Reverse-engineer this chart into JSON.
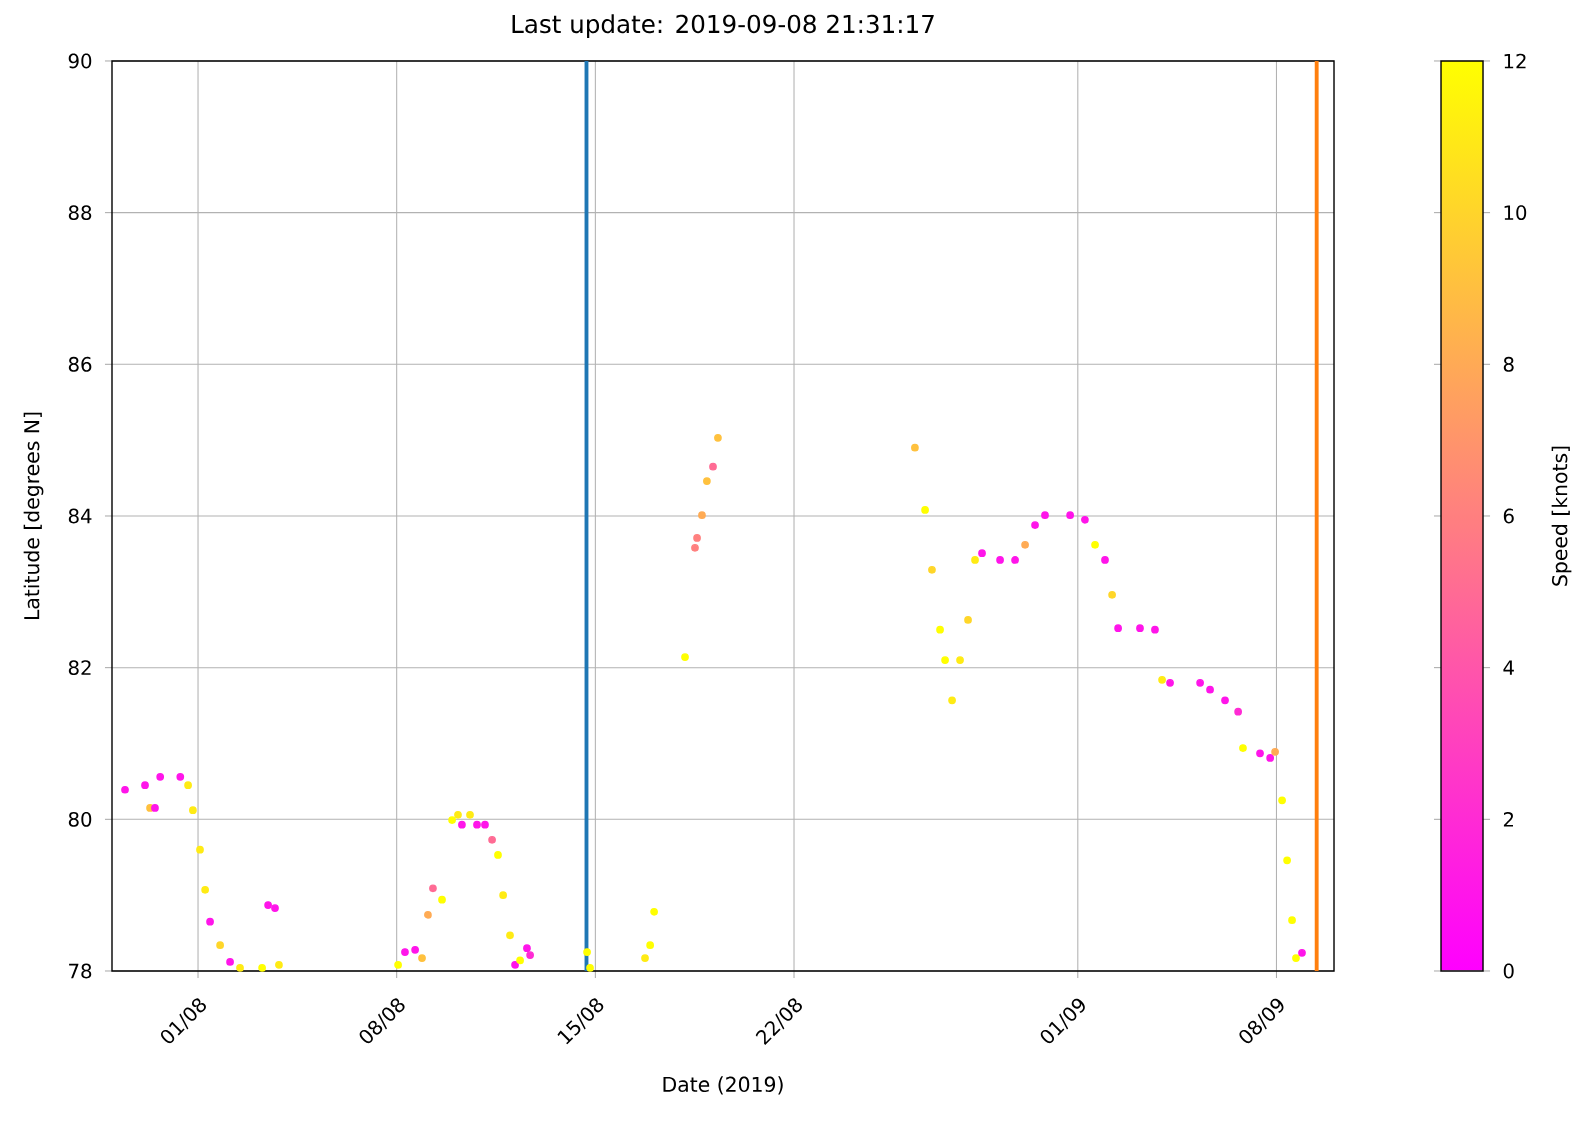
{
  "chart_data": {
    "type": "scatter",
    "title": "Last update: 2019-09-08 21:31:17",
    "xlabel": "Date (2019)",
    "ylabel": "Latitude [degrees N]",
    "clabel": "Speed [knots]",
    "x": [
      "2019-07-29T10:15",
      "2019-07-30T03:10",
      "2019-07-30T07:25",
      "2019-07-30T11:35",
      "2019-07-30T16:00",
      "2019-07-31T09:00",
      "2019-07-31T15:35",
      "2019-07-31T19:40",
      "2019-08-01T01:40",
      "2019-08-01T06:00",
      "2019-08-01T10:10",
      "2019-08-01T18:40",
      "2019-08-02T03:05",
      "2019-08-02T11:30",
      "2019-08-03T06:10",
      "2019-08-03T11:15",
      "2019-08-03T17:05",
      "2019-08-03T20:25",
      "2019-08-08T01:10",
      "2019-08-08T07:00",
      "2019-08-08T15:35",
      "2019-08-08T21:25",
      "2019-08-09T02:25",
      "2019-08-09T06:40",
      "2019-08-09T14:20",
      "2019-08-09T22:50",
      "2019-08-10T03:50",
      "2019-08-10T07:10",
      "2019-08-10T14:00",
      "2019-08-10T19:55",
      "2019-08-11T02:40",
      "2019-08-11T08:40",
      "2019-08-11T13:40",
      "2019-08-11T18:00",
      "2019-08-11T23:50",
      "2019-08-12T04:05",
      "2019-08-12T08:20",
      "2019-08-12T14:10",
      "2019-08-12T16:50",
      "2019-08-14T17:00",
      "2019-08-14T19:30",
      "2019-08-16T18:00",
      "2019-08-16T22:20",
      "2019-08-17T01:40",
      "2019-08-18T03:50",
      "2019-08-18T12:15",
      "2019-08-18T14:00",
      "2019-08-18T18:10",
      "2019-08-18T22:20",
      "2019-08-19T03:30",
      "2019-08-19T07:40",
      "2019-08-26T06:15",
      "2019-08-26T14:50",
      "2019-08-26T20:40",
      "2019-08-27T03:30",
      "2019-08-27T07:45",
      "2019-08-27T13:40",
      "2019-08-27T20:25",
      "2019-08-28T03:10",
      "2019-08-28T09:05",
      "2019-08-28T15:00",
      "2019-08-29T06:15",
      "2019-08-29T18:55",
      "2019-08-30T03:25",
      "2019-08-30T11:50",
      "2019-08-30T20:15",
      "2019-08-31T17:30",
      "2019-09-01T06:00",
      "2019-09-01T14:35",
      "2019-09-01T23:00",
      "2019-09-02T05:00",
      "2019-09-02T10:05",
      "2019-09-03T04:35",
      "2019-09-03T17:15",
      "2019-09-03T23:15",
      "2019-09-04T06:00",
      "2019-09-05T07:25",
      "2019-09-05T15:50",
      "2019-09-06T04:30",
      "2019-09-06T15:35",
      "2019-09-06T19:40",
      "2019-09-07T10:05",
      "2019-09-07T18:40",
      "2019-09-07T22:50",
      "2019-09-08T04:45",
      "2019-09-08T09:00",
      "2019-09-08T13:10",
      "2019-09-08T16:30",
      "2019-09-08T21:35"
    ],
    "values": [
      80.39,
      80.45,
      80.15,
      80.15,
      80.56,
      80.56,
      80.45,
      80.12,
      79.6,
      79.07,
      78.65,
      78.34,
      78.12,
      78.04,
      78.04,
      78.87,
      78.83,
      78.08,
      78.08,
      78.25,
      78.28,
      78.17,
      78.74,
      79.09,
      78.94,
      79.99,
      80.06,
      79.93,
      80.06,
      79.93,
      79.93,
      79.73,
      79.53,
      79.0,
      78.47,
      78.08,
      78.14,
      78.3,
      78.21,
      78.25,
      78.04,
      78.17,
      78.34,
      78.78,
      82.14,
      83.58,
      83.71,
      84.01,
      84.46,
      84.65,
      85.03,
      84.9,
      84.08,
      83.29,
      82.5,
      82.1,
      81.57,
      82.1,
      82.63,
      83.42,
      83.51,
      83.42,
      83.42,
      83.62,
      83.88,
      84.01,
      84.01,
      83.95,
      83.62,
      83.42,
      82.96,
      82.52,
      82.52,
      82.5,
      81.84,
      81.8,
      81.8,
      81.71,
      81.57,
      81.42,
      80.94,
      80.87,
      80.81,
      80.89,
      80.25,
      79.46,
      78.67,
      78.17,
      78.24
    ],
    "cvalues": [
      1,
      1,
      9,
      1,
      1,
      1,
      11,
      11,
      11,
      11,
      1,
      10,
      1,
      11,
      12,
      1,
      1,
      11,
      12,
      1,
      1,
      9,
      8,
      5,
      12,
      12,
      11,
      1,
      11,
      1,
      1,
      5,
      12,
      11,
      11,
      1,
      12,
      1,
      2,
      12,
      12,
      11,
      12,
      12,
      12,
      6,
      6,
      8,
      9,
      5,
      9,
      9,
      12,
      10,
      12,
      12,
      11,
      11,
      10,
      11,
      1,
      1,
      1,
      8,
      1,
      1,
      1,
      1,
      12,
      1,
      10,
      1,
      1,
      1,
      11,
      1,
      1,
      1,
      1,
      2,
      12,
      1,
      1,
      8,
      12,
      12,
      12,
      12,
      1
    ],
    "xlim": [
      "2019-07-28T23:15",
      "2019-09-10T00:40"
    ],
    "xticks": [
      {
        "value": "2019-08-01",
        "label": "01/08"
      },
      {
        "value": "2019-08-08",
        "label": "08/08"
      },
      {
        "value": "2019-08-15",
        "label": "15/08"
      },
      {
        "value": "2019-08-22",
        "label": "22/08"
      },
      {
        "value": "2019-09-01",
        "label": "01/09"
      },
      {
        "value": "2019-09-08",
        "label": "08/09"
      }
    ],
    "ylim": [
      78,
      90
    ],
    "yticks": [
      78,
      80,
      82,
      84,
      86,
      88,
      90
    ],
    "clim": [
      0,
      12
    ],
    "cticks": [
      0,
      2,
      4,
      6,
      8,
      10,
      12
    ],
    "ref_lines": [
      {
        "axis": "x",
        "value": "2019-08-14T16:30",
        "color": "#1f77b4"
      },
      {
        "axis": "x",
        "value": "2019-09-09T10:00",
        "color": "#ff7f0e"
      }
    ],
    "grid": true,
    "marker": "circle"
  }
}
